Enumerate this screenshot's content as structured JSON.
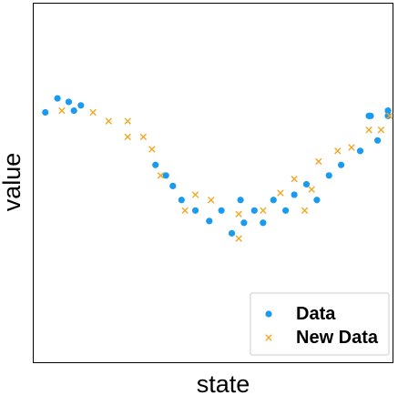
{
  "chart_data": {
    "type": "scatter",
    "xlabel": "state",
    "ylabel": "value",
    "xlim": [
      0,
      20
    ],
    "ylim": [
      0,
      10
    ],
    "grid": false,
    "ticks_visible": false,
    "legend_position": "bottom-right",
    "series": [
      {
        "name": "Data",
        "marker": "circle",
        "color": "#1a9bf0",
        "points": [
          [
            0.25,
            7.0
          ],
          [
            0.95,
            7.4
          ],
          [
            1.6,
            7.3
          ],
          [
            1.9,
            7.05
          ],
          [
            2.3,
            7.2
          ],
          [
            6.6,
            5.5
          ],
          [
            7.2,
            5.2
          ],
          [
            7.6,
            4.9
          ],
          [
            8.1,
            4.5
          ],
          [
            8.9,
            4.2
          ],
          [
            9.7,
            3.9
          ],
          [
            10.4,
            4.2
          ],
          [
            11.0,
            3.55
          ],
          [
            11.5,
            4.5
          ],
          [
            11.7,
            3.85
          ],
          [
            12.3,
            4.2
          ],
          [
            12.8,
            3.85
          ],
          [
            13.4,
            4.5
          ],
          [
            14.1,
            4.2
          ],
          [
            14.6,
            4.65
          ],
          [
            15.3,
            4.95
          ],
          [
            15.9,
            4.5
          ],
          [
            16.6,
            5.2
          ],
          [
            17.3,
            5.5
          ],
          [
            18.4,
            5.9
          ],
          [
            19.4,
            6.2
          ],
          [
            20.0,
            6.9
          ],
          [
            19.0,
            6.9
          ],
          [
            18.9,
            6.9
          ],
          [
            20.0,
            7.05
          ]
        ]
      },
      {
        "name": "New Data",
        "marker": "x",
        "color": "#f5a623",
        "points": [
          [
            1.2,
            7.05
          ],
          [
            3.0,
            7.0
          ],
          [
            3.9,
            6.75
          ],
          [
            5.0,
            6.75
          ],
          [
            5.0,
            6.3
          ],
          [
            5.9,
            6.3
          ],
          [
            6.4,
            5.95
          ],
          [
            6.9,
            5.2
          ],
          [
            8.3,
            4.2
          ],
          [
            8.9,
            4.65
          ],
          [
            9.8,
            4.5
          ],
          [
            11.4,
            4.1
          ],
          [
            11.4,
            3.4
          ],
          [
            12.8,
            4.2
          ],
          [
            13.8,
            4.7
          ],
          [
            14.6,
            5.1
          ],
          [
            15.2,
            4.2
          ],
          [
            15.6,
            4.8
          ],
          [
            16.0,
            5.6
          ],
          [
            17.1,
            5.9
          ],
          [
            17.9,
            6.0
          ],
          [
            18.9,
            6.5
          ],
          [
            19.6,
            6.5
          ],
          [
            20.1,
            6.9
          ]
        ]
      }
    ]
  },
  "legend": {
    "items": [
      {
        "label": "Data",
        "marker": "circle",
        "color": "#1a9bf0"
      },
      {
        "label": "New Data",
        "marker": "x",
        "color": "#f5a623"
      }
    ]
  }
}
